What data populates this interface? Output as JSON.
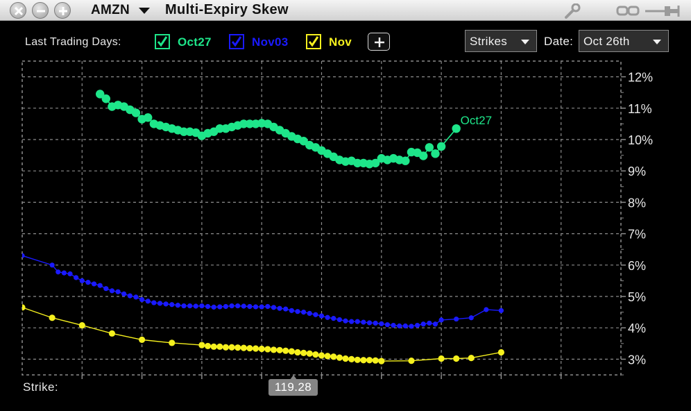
{
  "window": {
    "symbol": "AMZN",
    "title": "Multi-Expiry Skew"
  },
  "header": {
    "last_trading_days_label": "Last Trading Days:",
    "series_toggles": [
      {
        "label": "Oct27",
        "checked": true,
        "color": "#1ee68a"
      },
      {
        "label": "Nov03",
        "checked": true,
        "color": "#1a1aff"
      },
      {
        "label": "Nov",
        "checked": true,
        "color": "#f5f01e"
      }
    ],
    "add_label": "+",
    "x_axis_select": "Strikes",
    "date_label": "Date:",
    "date_value": "Oct 26th"
  },
  "footer": {
    "strike_label": "Strike:",
    "cursor_value": "119.28"
  },
  "colors": {
    "background": "#000000",
    "grid": "#8c8c8c",
    "axis_text": "#e8e8e8"
  },
  "chart_data": {
    "type": "line",
    "xlabel": "",
    "ylabel": "",
    "xlim": [
      80,
      180
    ],
    "ylim": [
      2.5,
      12.5
    ],
    "x_ticks": [
      90,
      100,
      110,
      120,
      130,
      140,
      150,
      160
    ],
    "y_ticks": [
      3,
      4,
      5,
      6,
      7,
      8,
      9,
      10,
      11,
      12
    ],
    "y_tick_suffix": "%",
    "grid": true,
    "y_axis_side": "right",
    "series": [
      {
        "name": "Oct27",
        "color": "#1ee68a",
        "marker_size": "large",
        "end_label": "Oct27",
        "x": [
          93,
          94,
          95,
          96,
          97,
          98,
          99,
          100,
          101,
          102,
          103,
          104,
          105,
          106,
          107,
          108,
          109,
          110,
          111,
          112,
          113,
          114,
          115,
          116,
          117,
          118,
          119,
          120,
          121,
          122,
          123,
          124,
          125,
          126,
          127,
          128,
          129,
          130,
          131,
          132,
          133,
          134,
          135,
          136,
          137,
          138,
          139,
          140,
          141,
          142,
          143,
          144,
          145,
          146,
          147,
          148,
          149,
          150,
          152.5
        ],
        "y": [
          11.45,
          11.3,
          11.05,
          11.1,
          11.05,
          10.95,
          10.85,
          10.65,
          10.7,
          10.5,
          10.45,
          10.4,
          10.35,
          10.3,
          10.25,
          10.25,
          10.22,
          10.12,
          10.2,
          10.25,
          10.35,
          10.35,
          10.4,
          10.45,
          10.5,
          10.5,
          10.5,
          10.52,
          10.5,
          10.4,
          10.3,
          10.2,
          10.1,
          10.02,
          9.95,
          9.82,
          9.75,
          9.65,
          9.55,
          9.45,
          9.35,
          9.3,
          9.32,
          9.25,
          9.25,
          9.22,
          9.25,
          9.4,
          9.35,
          9.4,
          9.35,
          9.32,
          9.6,
          9.58,
          9.48,
          9.75,
          9.55,
          9.78,
          10.35
        ]
      },
      {
        "name": "Nov03",
        "color": "#1a1aff",
        "marker_size": "small",
        "x": [
          75,
          80,
          85,
          86,
          87,
          88,
          89,
          90,
          91,
          92,
          93,
          94,
          95,
          96,
          97,
          98,
          99,
          100,
          101,
          102,
          103,
          104,
          105,
          106,
          107,
          108,
          109,
          110,
          111,
          112,
          113,
          114,
          115,
          116,
          117,
          118,
          119,
          120,
          121,
          122,
          123,
          124,
          125,
          126,
          127,
          128,
          129,
          130,
          131,
          132,
          133,
          134,
          135,
          136,
          137,
          138,
          139,
          140,
          141,
          142,
          143,
          144,
          145,
          146,
          147,
          148,
          149,
          150,
          152.5,
          155,
          157.5,
          160
        ],
        "y": [
          6.45,
          6.3,
          6.0,
          5.78,
          5.75,
          5.72,
          5.6,
          5.5,
          5.45,
          5.4,
          5.35,
          5.25,
          5.18,
          5.15,
          5.08,
          5.02,
          4.98,
          4.9,
          4.85,
          4.8,
          4.78,
          4.76,
          4.74,
          4.72,
          4.7,
          4.7,
          4.69,
          4.7,
          4.68,
          4.66,
          4.67,
          4.68,
          4.7,
          4.7,
          4.69,
          4.68,
          4.67,
          4.67,
          4.68,
          4.65,
          4.62,
          4.6,
          4.55,
          4.52,
          4.5,
          4.46,
          4.42,
          4.38,
          4.33,
          4.3,
          4.26,
          4.22,
          4.2,
          4.2,
          4.18,
          4.16,
          4.15,
          4.13,
          4.1,
          4.08,
          4.06,
          4.06,
          4.05,
          4.08,
          4.12,
          4.15,
          4.12,
          4.25,
          4.28,
          4.32,
          4.58,
          4.55
        ]
      },
      {
        "name": "Nov",
        "color": "#f5f01e",
        "marker_size": "medium",
        "x": [
          80,
          85,
          90,
          95,
          100,
          105,
          110,
          111,
          112,
          113,
          114,
          115,
          116,
          117,
          118,
          119,
          120,
          121,
          122,
          123,
          124,
          125,
          126,
          127,
          128,
          129,
          130,
          131,
          132,
          133,
          134,
          135,
          136,
          137,
          138,
          139,
          140,
          145,
          150,
          152.5,
          155,
          160
        ],
        "y": [
          4.65,
          4.32,
          4.08,
          3.82,
          3.62,
          3.52,
          3.45,
          3.42,
          3.4,
          3.4,
          3.38,
          3.38,
          3.37,
          3.36,
          3.35,
          3.34,
          3.33,
          3.32,
          3.3,
          3.29,
          3.27,
          3.25,
          3.22,
          3.2,
          3.18,
          3.15,
          3.12,
          3.1,
          3.08,
          3.05,
          3.02,
          3.0,
          2.98,
          2.97,
          2.97,
          2.96,
          2.94,
          2.95,
          3.02,
          3.02,
          3.04,
          3.22
        ]
      }
    ]
  }
}
